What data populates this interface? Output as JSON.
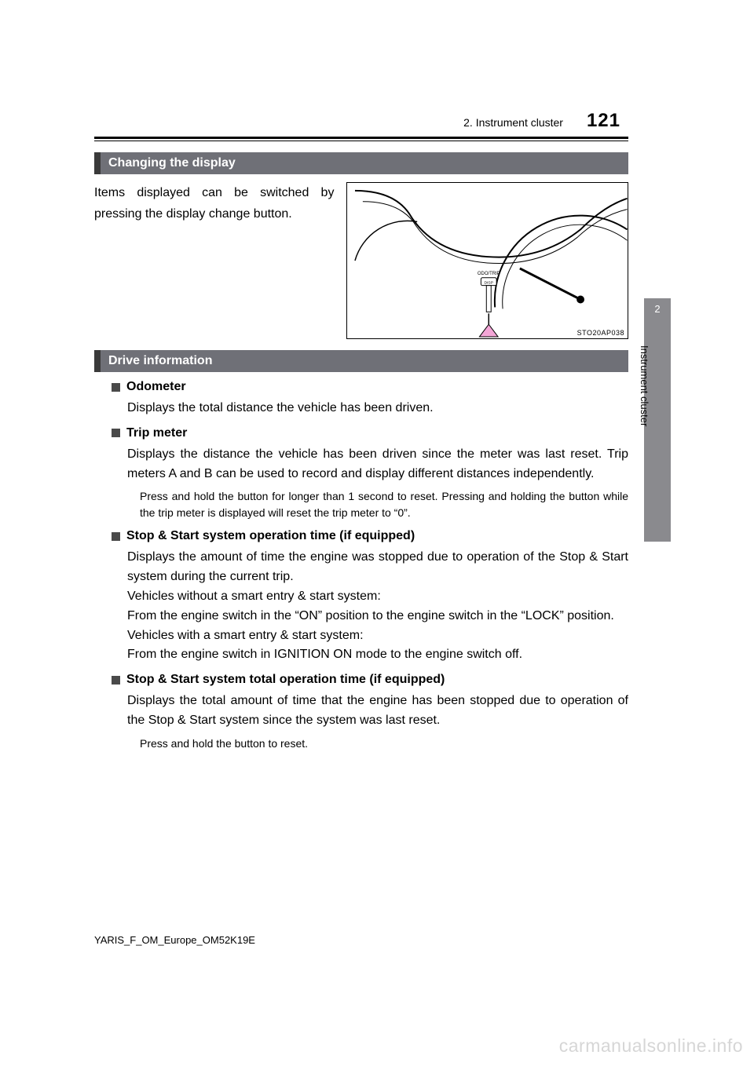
{
  "header": {
    "breadcrumb": "2. Instrument cluster",
    "page_number": "121"
  },
  "sidetab": {
    "number": "2",
    "label": "Instrument cluster"
  },
  "sections": {
    "changing": {
      "title": "Changing the display",
      "body": "Items displayed can be switched by pressing the display change button.",
      "figure": {
        "code": "STO20AP038",
        "button_label_top": "ODO/TRIP",
        "button_label_bottom": "DISP",
        "arrow_color": "#f4a6d7",
        "line_color": "#000000",
        "bg_color": "#ffffff"
      }
    },
    "drive": {
      "title": "Drive information",
      "items": [
        {
          "title": "Odometer",
          "body": "Displays the total distance the vehicle has been driven."
        },
        {
          "title": "Trip meter",
          "body": "Displays the distance the vehicle has been driven since the meter was last reset. Trip meters A and B can be used to record and display different distances independently.",
          "note": "Press and hold the button for longer than 1 second to reset. Pressing and holding the button while the trip meter is displayed will reset the trip meter to “0”."
        },
        {
          "title": "Stop & Start system operation time (if equipped)",
          "body": "Displays the amount of time the engine was stopped due to operation of the Stop & Start system during the current trip.\nVehicles without a smart entry & start system:\nFrom the engine switch in the “ON” position to the engine switch in the “LOCK” position.\nVehicles with a smart entry & start system:\nFrom the engine switch in IGNITION ON mode to the engine switch off."
        },
        {
          "title": "Stop & Start system total operation time (if equipped)",
          "body": "Displays the total amount of time that the engine has been stopped due to operation of the Stop & Start system since the system was last reset.",
          "note": "Press and hold the button to reset."
        }
      ]
    }
  },
  "footer": "YARIS_F_OM_Europe_OM52K19E",
  "watermark": "carmanualsonline.info"
}
